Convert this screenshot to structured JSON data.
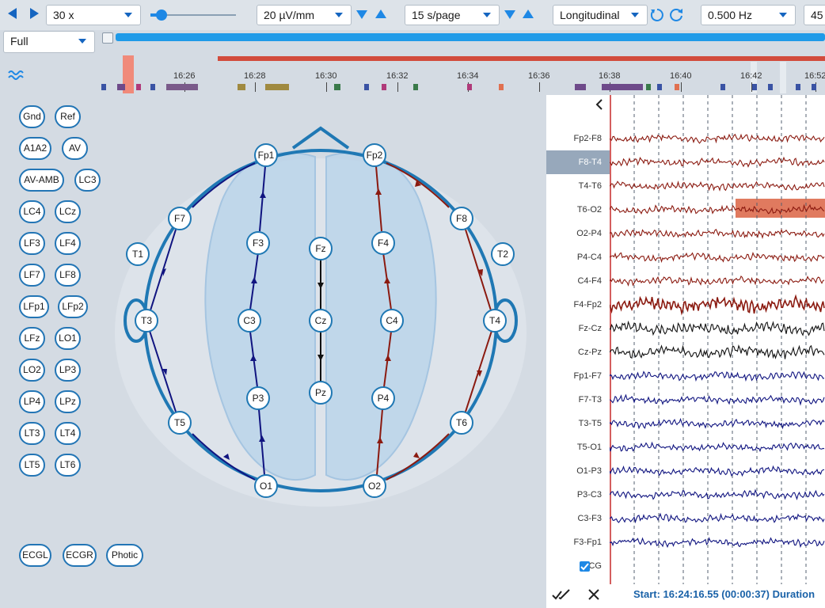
{
  "toolbar": {
    "speed": "30 x",
    "sensitivity": "20 µV/mm",
    "timebase": "15 s/page",
    "montage": "Longitudinal",
    "filter": "0.500 Hz",
    "extra": "45",
    "view_mode": "Full"
  },
  "timeline": {
    "labels": [
      "16:26",
      "16:28",
      "16:30",
      "16:32",
      "16:34",
      "16:36",
      "16:38",
      "16:40",
      "16:42",
      "16:52"
    ]
  },
  "electrode_buttons": [
    "Gnd",
    "Ref",
    "A1A2",
    "AV",
    "AV-AMB",
    "LC3",
    "LC4",
    "LCz",
    "LF3",
    "LF4",
    "LF7",
    "LF8",
    "LFp1",
    "LFp2",
    "LFz",
    "LO1",
    "LO2",
    "LP3",
    "LP4",
    "LPz",
    "LT3",
    "LT4",
    "LT5",
    "LT6",
    "ECGL",
    "ECGR",
    "Photic"
  ],
  "electrodes": [
    "Fp1",
    "Fp2",
    "F7",
    "F3",
    "Fz",
    "F4",
    "F8",
    "T1",
    "T2",
    "T3",
    "C3",
    "Cz",
    "C4",
    "T4",
    "P3",
    "Pz",
    "P4",
    "T5",
    "T6",
    "O1",
    "O2"
  ],
  "channels": [
    "Fp2-F8",
    "F8-T4",
    "T4-T6",
    "T6-O2",
    "O2-P4",
    "P4-C4",
    "C4-F4",
    "F4-Fp2",
    "Fz-Cz",
    "Cz-Pz",
    "Fp1-F7",
    "F7-T3",
    "T3-T5",
    "T5-O1",
    "O1-P3",
    "P3-C3",
    "C3-F3",
    "F3-Fp1"
  ],
  "selected_channel": "F8-T4",
  "ecg_label": "ECG",
  "footer": "Start: 16:24:16.55 (00:00:37) Duration",
  "colors": {
    "accent": "#1e88e5",
    "right_hemi": "#8b1a10",
    "left_hemi": "#101480",
    "midline": "#111111",
    "head": "#1f78b4"
  }
}
